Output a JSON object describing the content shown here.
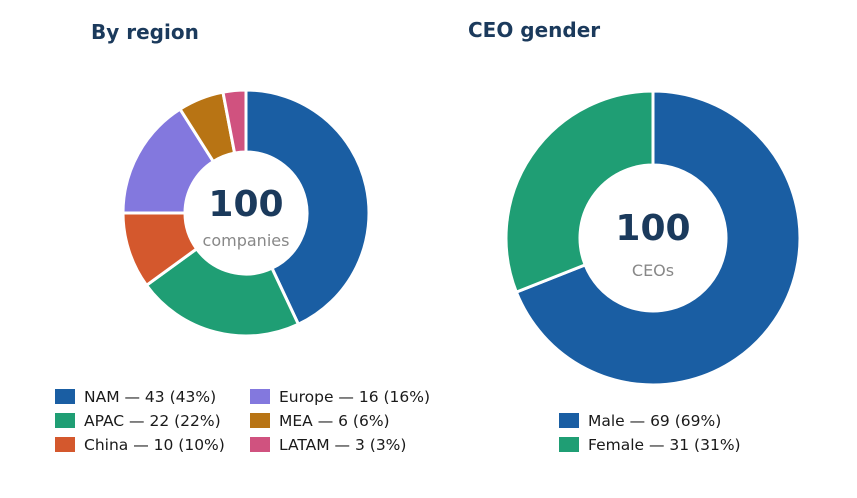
{
  "chart_data": [
    {
      "type": "pie",
      "title": "By region",
      "center_value": "100",
      "center_label": "companies",
      "legend_columns": 2,
      "legend_placement": "bottom",
      "slices": [
        {
          "label": "NAM — 43  (43%)",
          "name": "NAM",
          "value": 43,
          "percent": 43,
          "color": "#1a5ea3"
        },
        {
          "label": "APAC — 22  (22%)",
          "name": "APAC",
          "value": 22,
          "percent": 22,
          "color": "#1f9e74"
        },
        {
          "label": "China — 10  (10%)",
          "name": "China",
          "value": 10,
          "percent": 10,
          "color": "#d4582d"
        },
        {
          "label": "Europe — 16  (16%)",
          "name": "Europe",
          "value": 16,
          "percent": 16,
          "color": "#8378de"
        },
        {
          "label": "MEA — 6  (6%)",
          "name": "MEA",
          "value": 6,
          "percent": 6,
          "color": "#b87414"
        },
        {
          "label": "LATAM — 3  (3%)",
          "name": "LATAM",
          "value": 3,
          "percent": 3,
          "color": "#d0527f"
        }
      ]
    },
    {
      "type": "pie",
      "title": "CEO gender",
      "center_value": "100",
      "center_label": "CEOs",
      "legend_columns": 1,
      "legend_placement": "bottom",
      "slices": [
        {
          "label": "Male — 69  (69%)",
          "name": "Male",
          "value": 69,
          "percent": 69,
          "color": "#1a5ea3"
        },
        {
          "label": "Female — 31  (31%)",
          "name": "Female",
          "value": 31,
          "percent": 31,
          "color": "#1f9e74"
        }
      ]
    }
  ]
}
